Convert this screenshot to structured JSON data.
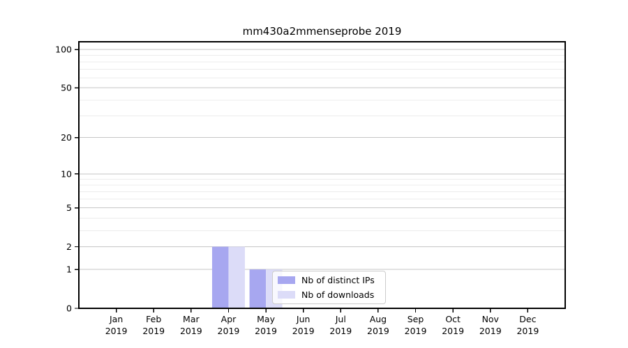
{
  "chart_data": {
    "type": "bar",
    "title": "mm430a2mmenseprobe 2019",
    "categories": [
      "Jan",
      "Feb",
      "Mar",
      "Apr",
      "May",
      "Jun",
      "Jul",
      "Aug",
      "Sep",
      "Oct",
      "Nov",
      "Dec"
    ],
    "year": "2019",
    "series": [
      {
        "name": "Nb of distinct IPs",
        "color": "#a7a7f0",
        "values": [
          0,
          0,
          0,
          2,
          1,
          0,
          0,
          0,
          0,
          0,
          0,
          0
        ]
      },
      {
        "name": "Nb of downloads",
        "color": "#dcdcf8",
        "values": [
          0,
          0,
          0,
          2,
          1,
          0,
          0,
          0,
          0,
          0,
          0,
          0
        ]
      }
    ],
    "yscale": "log10(1+v)",
    "ylim": [
      0,
      115
    ],
    "y_major_ticks": [
      0,
      1,
      2,
      5,
      10,
      20,
      50,
      100
    ],
    "y_minor_gridlines": [
      3,
      4,
      6,
      7,
      8,
      9,
      30,
      40,
      60,
      70,
      80,
      90
    ],
    "grid": "horizontal",
    "legend_position": "inside-lower-center",
    "colors": {
      "axis": "#000000",
      "grid_major": "#c6c6c6",
      "grid_minor": "#ececec",
      "tick_label": "#000000",
      "legend_border": "#cccccc"
    }
  }
}
